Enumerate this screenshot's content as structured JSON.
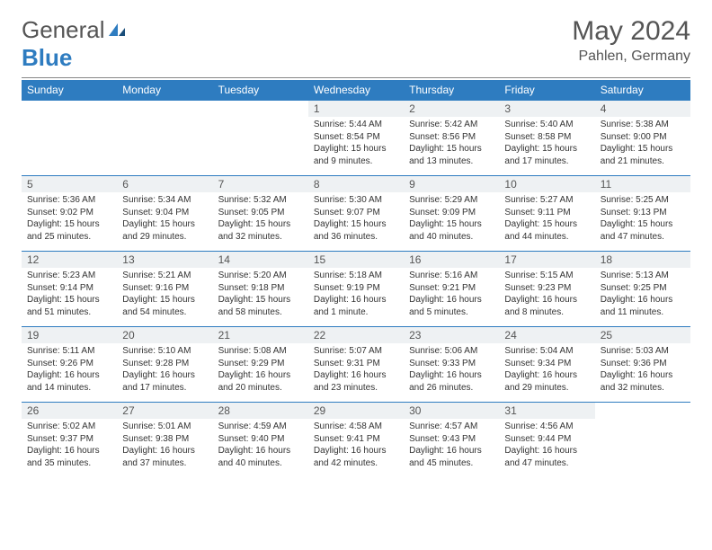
{
  "logo": {
    "text1": "General",
    "text2": "Blue"
  },
  "title": "May 2024",
  "location": "Pahlen, Germany",
  "colors": {
    "header_bg": "#2e7cc0",
    "header_text": "#ffffff",
    "daynum_bg": "#eef1f3",
    "daynum_text": "#555555",
    "body_text": "#333333",
    "rule": "#2e7cc0",
    "logo_gray": "#555555",
    "logo_blue": "#2e7cc0"
  },
  "weekdays": [
    "Sunday",
    "Monday",
    "Tuesday",
    "Wednesday",
    "Thursday",
    "Friday",
    "Saturday"
  ],
  "weeks": [
    [
      null,
      null,
      null,
      {
        "n": "1",
        "sr": "Sunrise: 5:44 AM",
        "ss": "Sunset: 8:54 PM",
        "d1": "Daylight: 15 hours",
        "d2": "and 9 minutes."
      },
      {
        "n": "2",
        "sr": "Sunrise: 5:42 AM",
        "ss": "Sunset: 8:56 PM",
        "d1": "Daylight: 15 hours",
        "d2": "and 13 minutes."
      },
      {
        "n": "3",
        "sr": "Sunrise: 5:40 AM",
        "ss": "Sunset: 8:58 PM",
        "d1": "Daylight: 15 hours",
        "d2": "and 17 minutes."
      },
      {
        "n": "4",
        "sr": "Sunrise: 5:38 AM",
        "ss": "Sunset: 9:00 PM",
        "d1": "Daylight: 15 hours",
        "d2": "and 21 minutes."
      }
    ],
    [
      {
        "n": "5",
        "sr": "Sunrise: 5:36 AM",
        "ss": "Sunset: 9:02 PM",
        "d1": "Daylight: 15 hours",
        "d2": "and 25 minutes."
      },
      {
        "n": "6",
        "sr": "Sunrise: 5:34 AM",
        "ss": "Sunset: 9:04 PM",
        "d1": "Daylight: 15 hours",
        "d2": "and 29 minutes."
      },
      {
        "n": "7",
        "sr": "Sunrise: 5:32 AM",
        "ss": "Sunset: 9:05 PM",
        "d1": "Daylight: 15 hours",
        "d2": "and 32 minutes."
      },
      {
        "n": "8",
        "sr": "Sunrise: 5:30 AM",
        "ss": "Sunset: 9:07 PM",
        "d1": "Daylight: 15 hours",
        "d2": "and 36 minutes."
      },
      {
        "n": "9",
        "sr": "Sunrise: 5:29 AM",
        "ss": "Sunset: 9:09 PM",
        "d1": "Daylight: 15 hours",
        "d2": "and 40 minutes."
      },
      {
        "n": "10",
        "sr": "Sunrise: 5:27 AM",
        "ss": "Sunset: 9:11 PM",
        "d1": "Daylight: 15 hours",
        "d2": "and 44 minutes."
      },
      {
        "n": "11",
        "sr": "Sunrise: 5:25 AM",
        "ss": "Sunset: 9:13 PM",
        "d1": "Daylight: 15 hours",
        "d2": "and 47 minutes."
      }
    ],
    [
      {
        "n": "12",
        "sr": "Sunrise: 5:23 AM",
        "ss": "Sunset: 9:14 PM",
        "d1": "Daylight: 15 hours",
        "d2": "and 51 minutes."
      },
      {
        "n": "13",
        "sr": "Sunrise: 5:21 AM",
        "ss": "Sunset: 9:16 PM",
        "d1": "Daylight: 15 hours",
        "d2": "and 54 minutes."
      },
      {
        "n": "14",
        "sr": "Sunrise: 5:20 AM",
        "ss": "Sunset: 9:18 PM",
        "d1": "Daylight: 15 hours",
        "d2": "and 58 minutes."
      },
      {
        "n": "15",
        "sr": "Sunrise: 5:18 AM",
        "ss": "Sunset: 9:19 PM",
        "d1": "Daylight: 16 hours",
        "d2": "and 1 minute."
      },
      {
        "n": "16",
        "sr": "Sunrise: 5:16 AM",
        "ss": "Sunset: 9:21 PM",
        "d1": "Daylight: 16 hours",
        "d2": "and 5 minutes."
      },
      {
        "n": "17",
        "sr": "Sunrise: 5:15 AM",
        "ss": "Sunset: 9:23 PM",
        "d1": "Daylight: 16 hours",
        "d2": "and 8 minutes."
      },
      {
        "n": "18",
        "sr": "Sunrise: 5:13 AM",
        "ss": "Sunset: 9:25 PM",
        "d1": "Daylight: 16 hours",
        "d2": "and 11 minutes."
      }
    ],
    [
      {
        "n": "19",
        "sr": "Sunrise: 5:11 AM",
        "ss": "Sunset: 9:26 PM",
        "d1": "Daylight: 16 hours",
        "d2": "and 14 minutes."
      },
      {
        "n": "20",
        "sr": "Sunrise: 5:10 AM",
        "ss": "Sunset: 9:28 PM",
        "d1": "Daylight: 16 hours",
        "d2": "and 17 minutes."
      },
      {
        "n": "21",
        "sr": "Sunrise: 5:08 AM",
        "ss": "Sunset: 9:29 PM",
        "d1": "Daylight: 16 hours",
        "d2": "and 20 minutes."
      },
      {
        "n": "22",
        "sr": "Sunrise: 5:07 AM",
        "ss": "Sunset: 9:31 PM",
        "d1": "Daylight: 16 hours",
        "d2": "and 23 minutes."
      },
      {
        "n": "23",
        "sr": "Sunrise: 5:06 AM",
        "ss": "Sunset: 9:33 PM",
        "d1": "Daylight: 16 hours",
        "d2": "and 26 minutes."
      },
      {
        "n": "24",
        "sr": "Sunrise: 5:04 AM",
        "ss": "Sunset: 9:34 PM",
        "d1": "Daylight: 16 hours",
        "d2": "and 29 minutes."
      },
      {
        "n": "25",
        "sr": "Sunrise: 5:03 AM",
        "ss": "Sunset: 9:36 PM",
        "d1": "Daylight: 16 hours",
        "d2": "and 32 minutes."
      }
    ],
    [
      {
        "n": "26",
        "sr": "Sunrise: 5:02 AM",
        "ss": "Sunset: 9:37 PM",
        "d1": "Daylight: 16 hours",
        "d2": "and 35 minutes."
      },
      {
        "n": "27",
        "sr": "Sunrise: 5:01 AM",
        "ss": "Sunset: 9:38 PM",
        "d1": "Daylight: 16 hours",
        "d2": "and 37 minutes."
      },
      {
        "n": "28",
        "sr": "Sunrise: 4:59 AM",
        "ss": "Sunset: 9:40 PM",
        "d1": "Daylight: 16 hours",
        "d2": "and 40 minutes."
      },
      {
        "n": "29",
        "sr": "Sunrise: 4:58 AM",
        "ss": "Sunset: 9:41 PM",
        "d1": "Daylight: 16 hours",
        "d2": "and 42 minutes."
      },
      {
        "n": "30",
        "sr": "Sunrise: 4:57 AM",
        "ss": "Sunset: 9:43 PM",
        "d1": "Daylight: 16 hours",
        "d2": "and 45 minutes."
      },
      {
        "n": "31",
        "sr": "Sunrise: 4:56 AM",
        "ss": "Sunset: 9:44 PM",
        "d1": "Daylight: 16 hours",
        "d2": "and 47 minutes."
      },
      null
    ]
  ]
}
